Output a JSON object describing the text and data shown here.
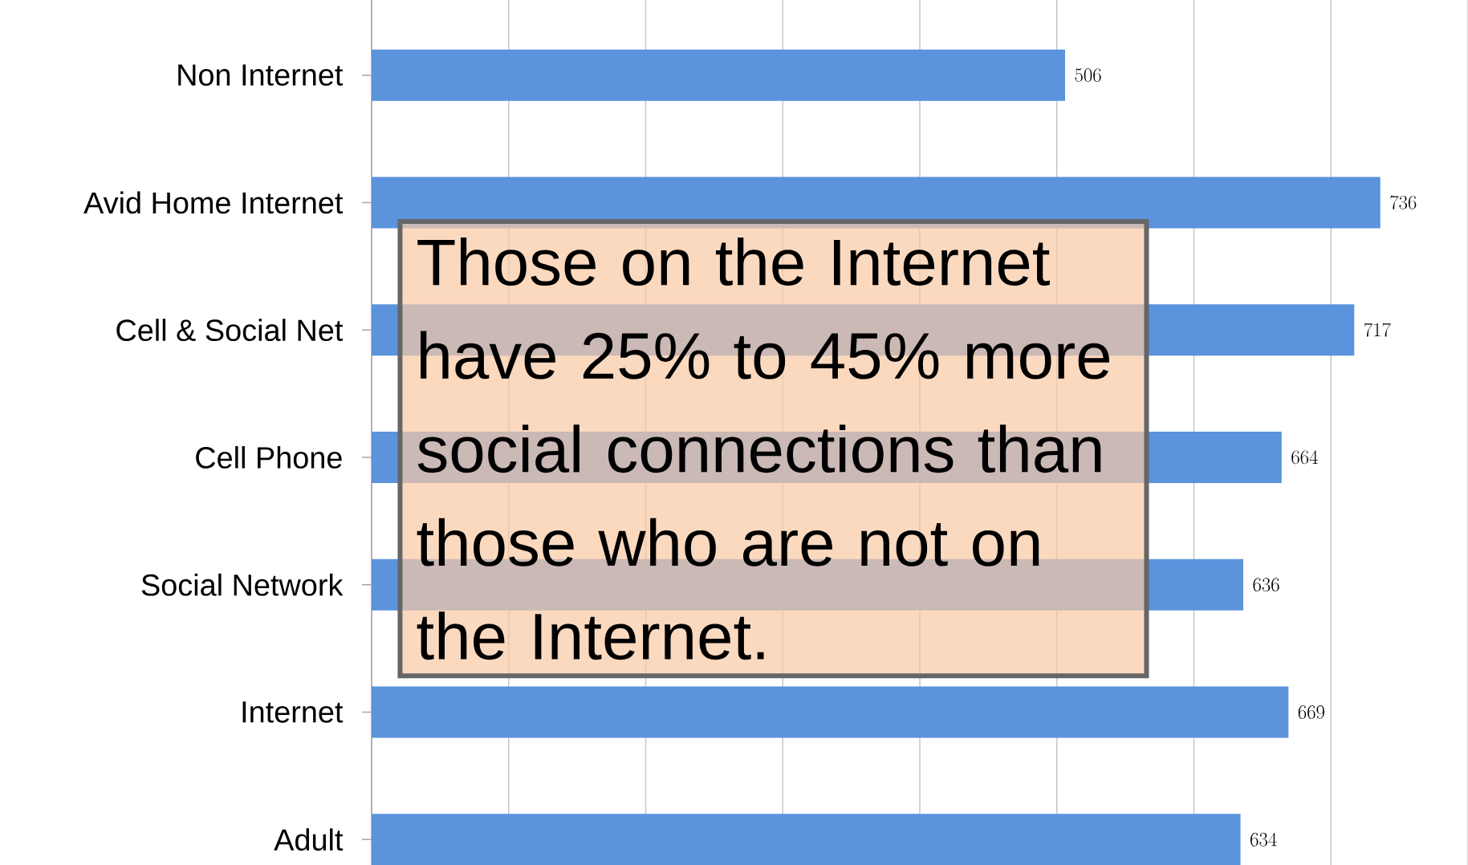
{
  "chart_data": {
    "type": "bar",
    "orientation": "horizontal",
    "categories": [
      "Non Internet",
      "Avid Home Internet",
      "Cell & Social Net",
      "Cell Phone",
      "Social Network",
      "Internet",
      "Adult"
    ],
    "values": [
      506,
      736,
      717,
      664,
      636,
      669,
      634
    ],
    "color": "#5b93dc",
    "xlim": [
      0,
      800
    ],
    "xticks": [
      {
        "value": 0,
        "label": null
      },
      {
        "value": 100,
        "label": null
      },
      {
        "value": 200,
        "label": null
      },
      {
        "value": 300,
        "label": null
      },
      {
        "value": 400,
        "label": null
      },
      {
        "value": 500,
        "label": null
      },
      {
        "value": 600,
        "label": null
      },
      {
        "value": 700,
        "label": null
      },
      {
        "value": 800,
        "label": null
      }
    ],
    "grid": "x",
    "tick_labels": "y",
    "data_labels": true,
    "annotations": [
      "Those on the Internet have 25% to 45% more social connections than those who are not on the Internet."
    ]
  }
}
